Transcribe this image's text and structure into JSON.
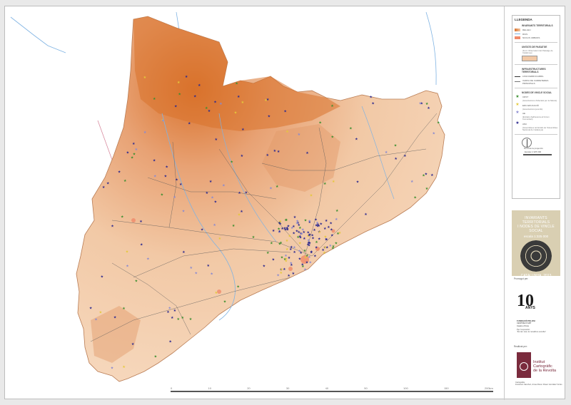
{
  "colors": {
    "relief_high": "#d9722c",
    "relief_low": "#f6d8bd",
    "sea": "#ffffff",
    "rivers": "#7fb3e3",
    "roads": "#5a5a5a",
    "node_rural": "#3b8f2f",
    "node_educacio": "#e5c93a",
    "node_lleure": "#8a8ad0",
    "node_anc": "#2e2a8f",
    "title_box": "#d9cfb2",
    "icc_brand": "#7a2b3d"
  },
  "map": {
    "scale_ticks": [
      "0",
      "10",
      "20",
      "30",
      "40",
      "50",
      "100",
      "150",
      "200km"
    ]
  },
  "legend": {
    "title": "LLEGENDA",
    "section_territorials": "INVARIANTS TERRITORIALS",
    "relleu": "RELLEU",
    "rius": "RIUS",
    "nuclis": "NUCLIS URBANS",
    "section_paisatge": "UNITATS DE PAISATGE",
    "paisatge_note": "(Font: Observatori del Paisatge de Catalunya)",
    "section_infra": "INFRAESTRUCTURES TERRITORIALS",
    "ferrocarril": "LINIA FERROCARRIL",
    "carreteres": "XARXA DE CARRETERES PRINCIPALS",
    "section_nodes": "NODES DE VINCLE SOCIAL",
    "node1": "CRST",
    "node1_note": "(Associacions d'Afectats per la Natura)",
    "node2": "EDU EDUCACIÓ",
    "node2_note": "(Associacions juvenils)",
    "node3": "AE",
    "node3_note": "(Entitats d'adhesions al Fòrum Comunitari)",
    "node4": "ANC",
    "node4_note": "(Assemblees territorials de l'Assemblea Nacional de Catalunya)",
    "north": "Nord de la projecció",
    "scale": "Escala 1:325 000"
  },
  "title_box": {
    "line1": "INVARIANTS TERRITORIALS",
    "line2": "I NODES DE VINCLE SOCIAL",
    "scale": "escala 1:325 000",
    "year": "CATALUNYA, 2013"
  },
  "sponsors": {
    "promogut": "Promogut per:",
    "anys_number": "10",
    "anys_label": "ANYS",
    "fundacio": "FUNDACIÓ PELOSI",
    "fund_sub": "CENTRE D'ART",
    "fund_sub2": "Casino d'Inca",
    "expo_label": "Per l'exposició:",
    "expo_title": "\"És tan real, la nosaltres escolta\"",
    "realitzat": "Realitzat per:",
    "icc_line1": "Institut",
    "icc_line2": "Cartogràfic",
    "icc_line3": "de la Revolta",
    "cartografia": "Cartografia:",
    "authors": "Francisco Sánchez, Arnau Roca i Roser González Vicrès"
  }
}
